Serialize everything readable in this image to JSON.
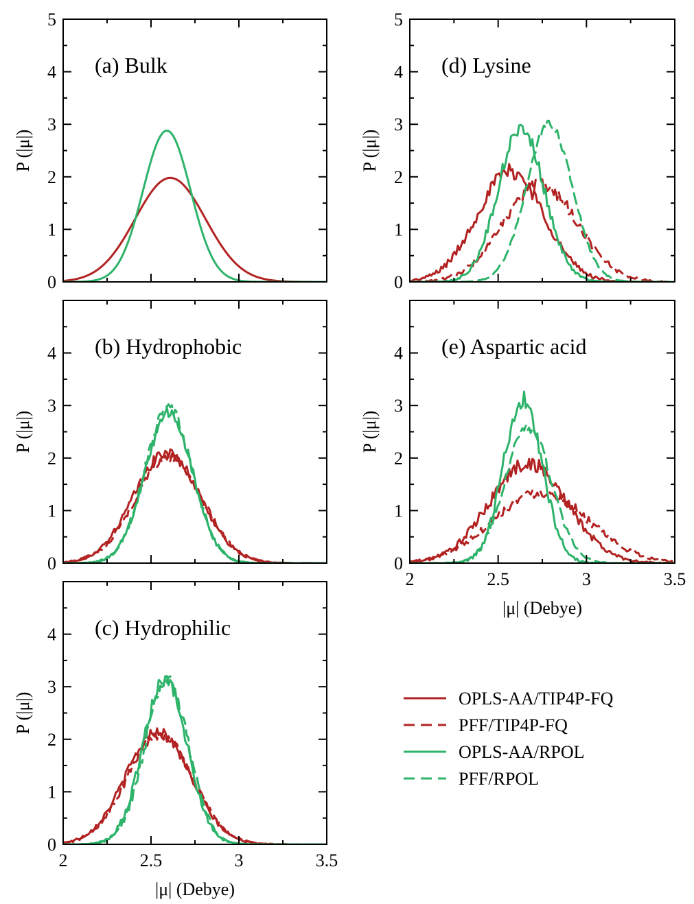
{
  "colors": {
    "red": "#b22222",
    "green": "#2db36a"
  },
  "legend": [
    {
      "label": "OPLS-AA/TIP4P-FQ",
      "color": "#b22222",
      "dash": "solid"
    },
    {
      "label": "PFF/TIP4P-FQ",
      "color": "#b22222",
      "dash": "dashed"
    },
    {
      "label": "OPLS-AA/RPOL",
      "color": "#2db36a",
      "dash": "solid"
    },
    {
      "label": "PFF/RPOL",
      "color": "#2db36a",
      "dash": "dashed"
    }
  ],
  "chart_data": [
    {
      "type": "line",
      "panel": "a",
      "title": "(a) Bulk",
      "ylabel": "P (|μ|)",
      "xlabel": "",
      "xlim": [
        2,
        3.5
      ],
      "ylim": [
        0,
        5
      ],
      "xticks": [
        2,
        2.5,
        3,
        3.5
      ],
      "yticks": [
        0,
        1,
        2,
        3,
        4,
        5
      ],
      "x_tick_labels_shown": false,
      "y_tick_labels": [
        "0",
        "1",
        "2",
        "3",
        "4",
        "5"
      ],
      "series": [
        {
          "legend_ref": 0,
          "shape": "gaussian",
          "mean": 2.61,
          "sd": 0.2,
          "peak": 1.98,
          "noise": 0
        },
        {
          "legend_ref": 2,
          "shape": "gaussian",
          "mean": 2.59,
          "sd": 0.135,
          "peak": 2.88,
          "noise": 0
        }
      ]
    },
    {
      "type": "line",
      "panel": "b",
      "title": "(b) Hydrophobic",
      "ylabel": "P (|μ|)",
      "xlabel": "",
      "xlim": [
        2,
        3.5
      ],
      "ylim": [
        0,
        5
      ],
      "xticks": [
        2,
        2.5,
        3,
        3.5
      ],
      "yticks": [
        0,
        1,
        2,
        3,
        4,
        5
      ],
      "x_tick_labels_shown": false,
      "y_tick_labels": [
        "0",
        "1",
        "2",
        "3",
        "4",
        ""
      ],
      "series": [
        {
          "legend_ref": 0,
          "shape": "gaussian",
          "mean": 2.59,
          "sd": 0.19,
          "peak": 2.1,
          "noise": 0.1
        },
        {
          "legend_ref": 1,
          "shape": "gaussian",
          "mean": 2.6,
          "sd": 0.19,
          "peak": 2.02,
          "noise": 0.1
        },
        {
          "legend_ref": 2,
          "shape": "gaussian",
          "mean": 2.6,
          "sd": 0.135,
          "peak": 2.85,
          "noise": 0.12
        },
        {
          "legend_ref": 3,
          "shape": "gaussian",
          "mean": 2.6,
          "sd": 0.135,
          "peak": 2.95,
          "noise": 0.12
        }
      ]
    },
    {
      "type": "line",
      "panel": "c",
      "title": "(c) Hydrophilic",
      "ylabel": "P (|μ|)",
      "xlabel": "|μ| (Debye)",
      "xlim": [
        2,
        3.5
      ],
      "ylim": [
        0,
        5
      ],
      "xticks": [
        2,
        2.5,
        3,
        3.5
      ],
      "yticks": [
        0,
        1,
        2,
        3,
        4,
        5
      ],
      "x_tick_labels_shown": true,
      "x_tick_labels": [
        "2",
        "2.5",
        "3",
        "3.5"
      ],
      "y_tick_labels": [
        "0",
        "1",
        "2",
        "3",
        "4",
        ""
      ],
      "series": [
        {
          "legend_ref": 0,
          "shape": "gaussian",
          "mean": 2.54,
          "sd": 0.185,
          "peak": 2.15,
          "noise": 0.1
        },
        {
          "legend_ref": 1,
          "shape": "gaussian",
          "mean": 2.55,
          "sd": 0.185,
          "peak": 2.1,
          "noise": 0.1
        },
        {
          "legend_ref": 2,
          "shape": "gaussian",
          "mean": 2.58,
          "sd": 0.125,
          "peak": 3.15,
          "noise": 0.15
        },
        {
          "legend_ref": 3,
          "shape": "gaussian",
          "mean": 2.59,
          "sd": 0.125,
          "peak": 3.1,
          "noise": 0.15
        }
      ]
    },
    {
      "type": "line",
      "panel": "d",
      "title": "(d) Lysine",
      "ylabel": "P (|μ|)",
      "xlabel": "",
      "xlim": [
        2,
        3.5
      ],
      "ylim": [
        0,
        5
      ],
      "xticks": [
        2,
        2.5,
        3,
        3.5
      ],
      "yticks": [
        0,
        1,
        2,
        3,
        4,
        5
      ],
      "x_tick_labels_shown": false,
      "y_tick_labels": [
        "0",
        "1",
        "2",
        "3",
        "4",
        "5"
      ],
      "series": [
        {
          "legend_ref": 0,
          "shape": "gaussian",
          "mean": 2.57,
          "sd": 0.19,
          "peak": 2.1,
          "noise": 0.15
        },
        {
          "legend_ref": 1,
          "shape": "gaussian",
          "mean": 2.74,
          "sd": 0.21,
          "peak": 1.85,
          "noise": 0.12
        },
        {
          "legend_ref": 2,
          "shape": "gaussian",
          "mean": 2.63,
          "sd": 0.13,
          "peak": 2.95,
          "noise": 0.15
        },
        {
          "legend_ref": 3,
          "shape": "gaussian",
          "mean": 2.79,
          "sd": 0.13,
          "peak": 3.0,
          "noise": 0.08
        }
      ]
    },
    {
      "type": "line",
      "panel": "e",
      "title": "(e) Aspartic acid",
      "ylabel": "P (|μ|)",
      "xlabel": "|μ| (Debye)",
      "xlim": [
        2,
        3.5
      ],
      "ylim": [
        0,
        5
      ],
      "xticks": [
        2,
        2.5,
        3,
        3.5
      ],
      "yticks": [
        0,
        1,
        2,
        3,
        4,
        5
      ],
      "x_tick_labels_shown": true,
      "x_tick_labels": [
        "2",
        "2.5",
        "3",
        "3.5"
      ],
      "y_tick_labels": [
        "0",
        "1",
        "2",
        "3",
        "4",
        ""
      ],
      "series": [
        {
          "legend_ref": 0,
          "shape": "gaussian",
          "mean": 2.67,
          "sd": 0.22,
          "peak": 1.9,
          "noise": 0.14
        },
        {
          "legend_ref": 1,
          "shape": "gaussian",
          "mean": 2.74,
          "sd": 0.27,
          "peak": 1.35,
          "noise": 0.1
        },
        {
          "legend_ref": 2,
          "shape": "gaussian",
          "mean": 2.64,
          "sd": 0.11,
          "peak": 3.1,
          "noise": 0.18
        },
        {
          "legend_ref": 3,
          "shape": "gaussian",
          "mean": 2.67,
          "sd": 0.13,
          "peak": 2.6,
          "noise": 0.12
        }
      ]
    }
  ]
}
